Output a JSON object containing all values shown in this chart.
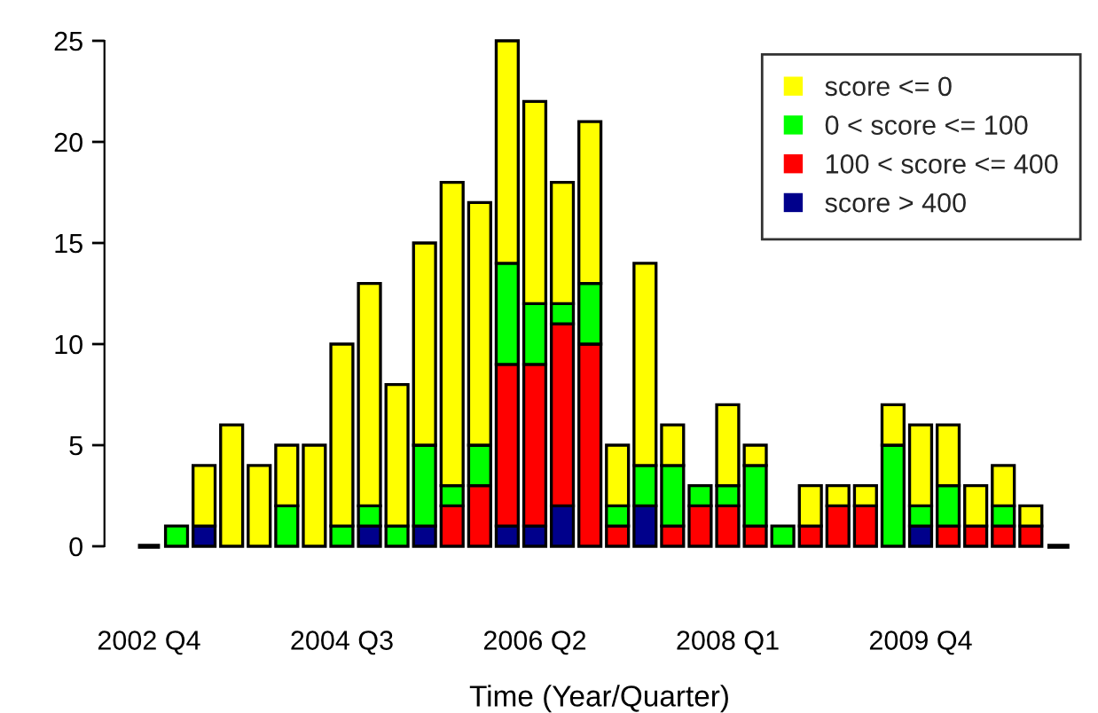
{
  "chart_data": {
    "type": "bar",
    "stacked": true,
    "xlabel": "Time (Year/Quarter)",
    "categories": [
      "2002 Q4",
      null,
      null,
      null,
      null,
      null,
      null,
      "2004 Q3",
      null,
      null,
      null,
      null,
      null,
      null,
      "2006 Q2",
      null,
      null,
      null,
      null,
      null,
      null,
      "2008 Q1",
      null,
      null,
      null,
      null,
      null,
      null,
      "2009 Q4",
      null,
      null,
      null,
      null,
      null
    ],
    "series": [
      {
        "name": "score > 400",
        "color": "#00008b",
        "values": [
          0,
          0,
          1,
          0,
          0,
          0,
          0,
          0,
          1,
          0,
          1,
          0,
          0,
          1,
          1,
          2,
          0,
          0,
          2,
          0,
          0,
          0,
          0,
          0,
          0,
          0,
          0,
          0,
          1,
          0,
          0,
          0,
          0,
          0
        ]
      },
      {
        "name": "100 < score <= 400",
        "color": "#ff0000",
        "values": [
          0,
          0,
          0,
          0,
          0,
          0,
          0,
          0,
          0,
          0,
          0,
          2,
          3,
          8,
          8,
          9,
          10,
          1,
          0,
          1,
          2,
          2,
          1,
          0,
          1,
          2,
          2,
          0,
          0,
          1,
          1,
          1,
          1,
          0
        ]
      },
      {
        "name": "0 < score <= 100",
        "color": "#00ff00",
        "values": [
          0,
          1,
          0,
          0,
          0,
          2,
          0,
          1,
          1,
          1,
          4,
          1,
          2,
          5,
          3,
          1,
          3,
          1,
          2,
          3,
          1,
          1,
          3,
          1,
          0,
          0,
          0,
          5,
          1,
          2,
          0,
          1,
          0,
          0
        ]
      },
      {
        "name": "score <= 0",
        "color": "#ffff00",
        "values": [
          0,
          0,
          3,
          6,
          4,
          3,
          5,
          9,
          11,
          7,
          10,
          15,
          12,
          11,
          10,
          6,
          8,
          3,
          10,
          2,
          0,
          4,
          1,
          0,
          2,
          1,
          1,
          2,
          4,
          3,
          2,
          2,
          1,
          0
        ]
      }
    ],
    "ylim": [
      0,
      25
    ],
    "yticks": [
      0,
      5,
      10,
      15,
      20,
      25
    ],
    "grid": false,
    "legend": "top right"
  }
}
